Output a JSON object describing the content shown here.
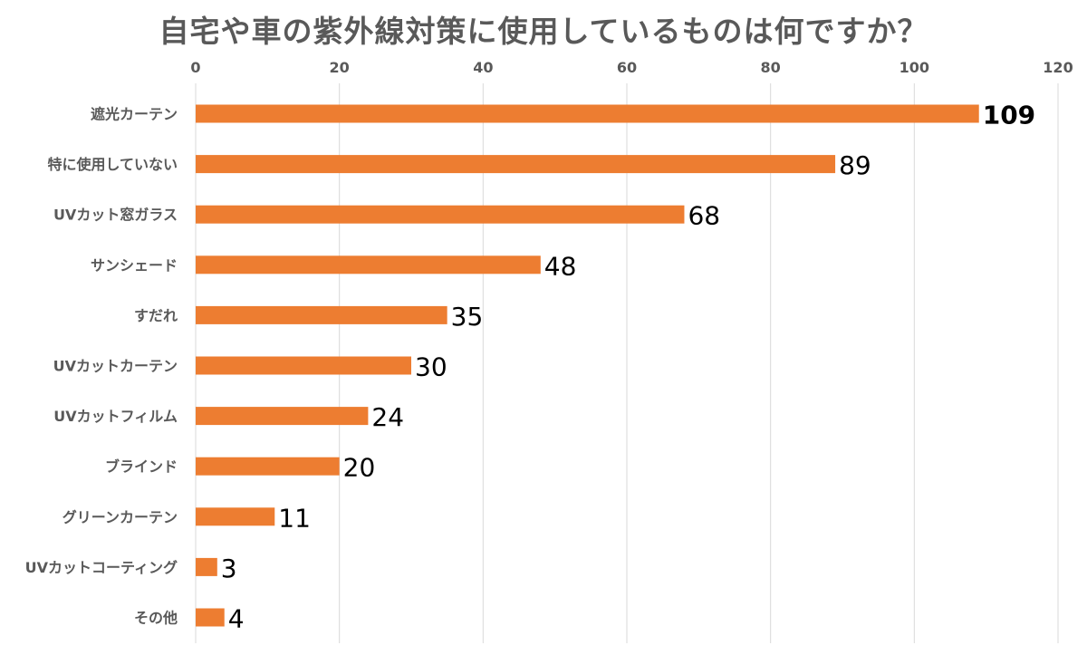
{
  "chart_data": {
    "type": "bar",
    "orientation": "horizontal",
    "title": "自宅や車の紫外線対策に使用しているものは何ですか？",
    "categories": [
      "遮光カーテン",
      "特に使用していない",
      "UVカット窓ガラス",
      "サンシェード",
      "すだれ",
      "UVカットカーテン",
      "UVカットフィルム",
      "ブラインド",
      "グリーンカーテン",
      "UVカットコーティング",
      "その他"
    ],
    "values": [
      109,
      89,
      68,
      48,
      35,
      30,
      24,
      20,
      11,
      3,
      4
    ],
    "xlim": [
      0,
      120
    ],
    "xticks": [
      0,
      20,
      40,
      60,
      80,
      100,
      120
    ],
    "x_axis_position": "top",
    "grid": true,
    "legend": "none",
    "bar_color": "#ED7D31",
    "grid_color": "#D9D9D9",
    "label_color": "#595959"
  }
}
